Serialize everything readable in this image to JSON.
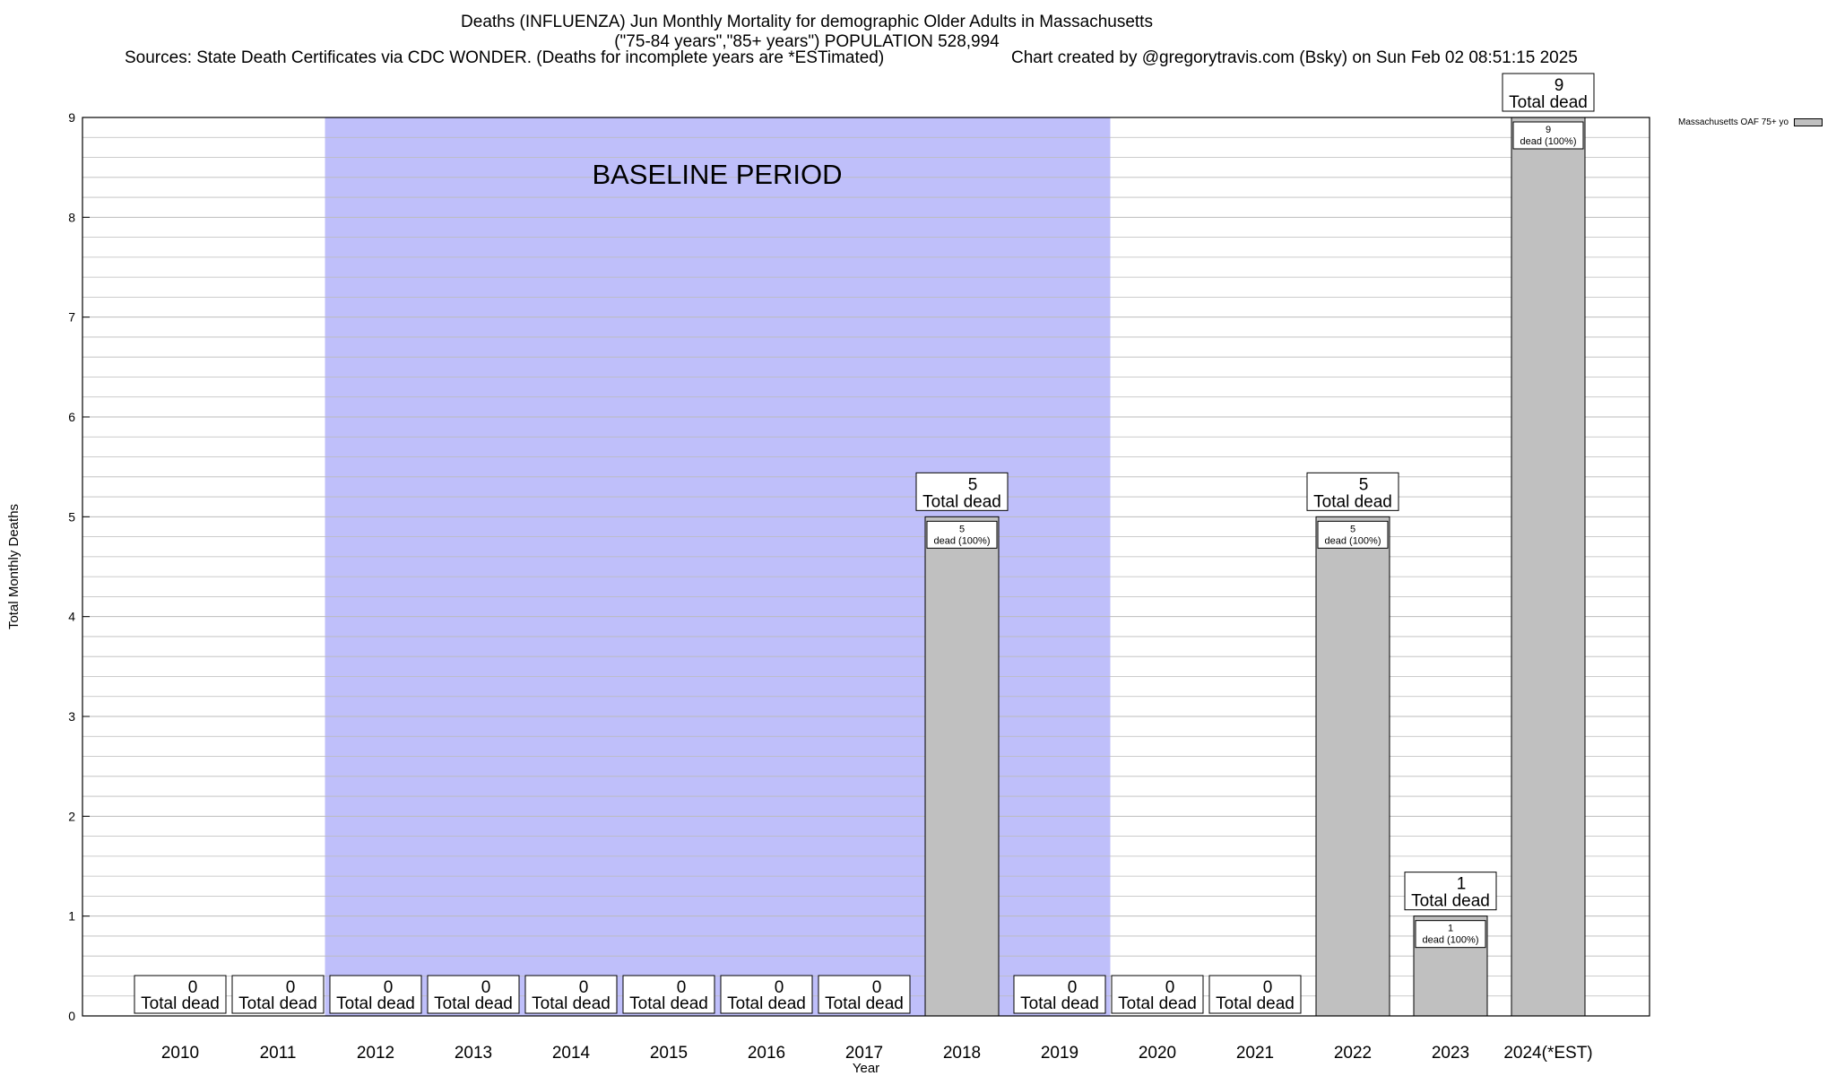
{
  "chart_data": {
    "type": "bar",
    "title_lines": [
      "Deaths (INFLUENZA) Jun Monthly Mortality for demographic Older Adults in Massachusetts",
      "(\"75-84 years\",\"85+ years\") POPULATION 528,994"
    ],
    "sources_text": "Sources: State Death Certificates via CDC WONDER. (Deaths for incomplete years are *ESTimated)",
    "credit_text": "Chart created by @gregorytravis.com (Bsky) on Sun Feb 02 08:51:15 2025",
    "xlabel": "Year",
    "ylabel": "Total Monthly Deaths",
    "ylim": [
      0,
      9
    ],
    "yticks": [
      0,
      1,
      2,
      3,
      4,
      5,
      6,
      7,
      8,
      9
    ],
    "grid": true,
    "categories": [
      "2010",
      "2011",
      "2012",
      "2013",
      "2014",
      "2015",
      "2016",
      "2017",
      "2018",
      "2019",
      "2020",
      "2021",
      "2022",
      "2023",
      "2024(*EST)"
    ],
    "series": [
      {
        "name": "Massachusetts OAF 75+ yo",
        "values": [
          0,
          0,
          0,
          0,
          0,
          0,
          0,
          0,
          5,
          0,
          0,
          0,
          5,
          1,
          9
        ]
      }
    ],
    "total_label_text": "Total dead",
    "segment_label_text": "dead (100%)",
    "baseline": {
      "label": "BASELINE PERIOD",
      "from": "2012",
      "to": "2019"
    },
    "colors": {
      "bar": "#c0c0c0",
      "baseline": "#bfbffa",
      "grid": "#bbbbbb",
      "swatch": "#c0c0c0"
    },
    "legend_position": "top-right"
  }
}
